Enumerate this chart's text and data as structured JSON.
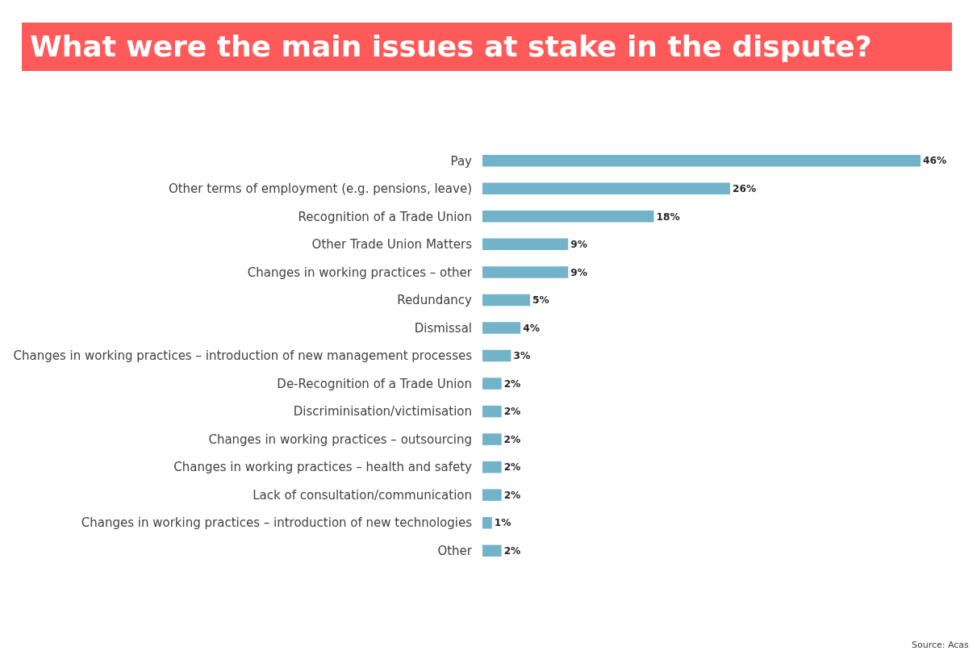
{
  "chart_data": {
    "type": "bar",
    "orientation": "horizontal",
    "title": "What were the main issues at stake in the dispute?",
    "categories": [
      "Pay",
      "Other terms of employment (e.g. pensions, leave)",
      "Recognition of a Trade Union",
      "Other Trade Union Matters",
      "Changes in working practices – other",
      "Redundancy",
      "Dismissal",
      "Changes in working practices – introduction of new management processes",
      "De-Recognition of a Trade Union",
      "Discriminisation/victimisation",
      "Changes in working practices – outsourcing",
      "Changes in working practices – health and safety",
      "Lack of consultation/communication",
      "Changes in working practices – introduction of new technologies",
      "Other"
    ],
    "values": [
      46,
      26,
      18,
      9,
      9,
      5,
      4,
      3,
      2,
      2,
      2,
      2,
      2,
      1,
      2
    ],
    "value_labels": [
      "46%",
      "26%",
      "18%",
      "9%",
      "9%",
      "5%",
      "4%",
      "3%",
      "2%",
      "2%",
      "2%",
      "2%",
      "2%",
      "1%",
      "2%"
    ],
    "color": "#72b3c9",
    "legend": false,
    "annotations": [
      "Source: Acas"
    ]
  }
}
